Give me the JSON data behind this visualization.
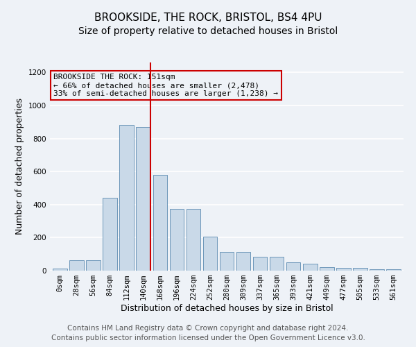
{
  "title1": "BROOKSIDE, THE ROCK, BRISTOL, BS4 4PU",
  "title2": "Size of property relative to detached houses in Bristol",
  "xlabel": "Distribution of detached houses by size in Bristol",
  "ylabel": "Number of detached properties",
  "bar_heights": [
    12,
    65,
    65,
    440,
    880,
    870,
    580,
    375,
    375,
    205,
    115,
    115,
    85,
    85,
    50,
    40,
    22,
    15,
    15,
    10,
    8
  ],
  "bar_color": "#c9d9e8",
  "bar_edge_color": "#5a8ab0",
  "categories": [
    "0sqm",
    "28sqm",
    "56sqm",
    "84sqm",
    "112sqm",
    "140sqm",
    "168sqm",
    "196sqm",
    "224sqm",
    "252sqm",
    "280sqm",
    "309sqm",
    "337sqm",
    "365sqm",
    "393sqm",
    "421sqm",
    "449sqm",
    "477sqm",
    "505sqm",
    "533sqm",
    "561sqm"
  ],
  "vline_x": 5.42,
  "vline_color": "#cc0000",
  "annotation_box_text": "BROOKSIDE THE ROCK: 151sqm\n← 66% of detached houses are smaller (2,478)\n33% of semi-detached houses are larger (1,238) →",
  "annotation_box_color": "#cc0000",
  "ylim": [
    0,
    1260
  ],
  "yticks": [
    0,
    200,
    400,
    600,
    800,
    1000,
    1200
  ],
  "footer1": "Contains HM Land Registry data © Crown copyright and database right 2024.",
  "footer2": "Contains public sector information licensed under the Open Government Licence v3.0.",
  "bg_color": "#eef2f7",
  "grid_color": "#ffffff",
  "title_fontsize": 11,
  "subtitle_fontsize": 10,
  "axis_label_fontsize": 9,
  "tick_fontsize": 7.5,
  "footer_fontsize": 7.5,
  "ann_fontsize": 8
}
